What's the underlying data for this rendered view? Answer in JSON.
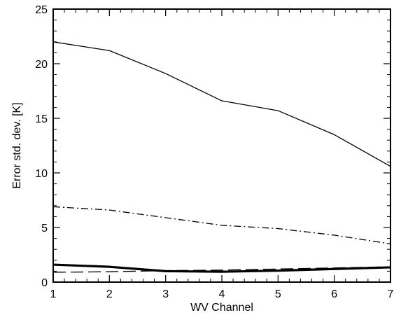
{
  "chart_data": {
    "type": "line",
    "title": "",
    "xlabel": "WV Channel",
    "ylabel": "Error std. dev. [K]",
    "xlim": [
      1,
      7
    ],
    "ylim": [
      0,
      25
    ],
    "x": [
      1,
      2,
      3,
      4,
      5,
      6,
      7
    ],
    "xticks": [
      "1",
      "2",
      "3",
      "4",
      "5",
      "6",
      "7"
    ],
    "yticks": [
      "0",
      "5",
      "10",
      "15",
      "20",
      "25"
    ],
    "grid": false,
    "legend": "none",
    "colors": {
      "axes": "#000000",
      "lines": "#000000",
      "background": "#ffffff"
    },
    "series": [
      {
        "style": "solid-thin",
        "values": [
          22.0,
          21.2,
          19.1,
          16.6,
          15.7,
          13.5,
          10.6
        ]
      },
      {
        "style": "dash-dot",
        "values": [
          6.9,
          6.6,
          5.9,
          5.2,
          4.9,
          4.3,
          3.5
        ]
      },
      {
        "style": "solid-thick",
        "values": [
          1.6,
          1.4,
          1.0,
          0.95,
          1.05,
          1.2,
          1.35
        ]
      },
      {
        "style": "long-dash",
        "values": [
          0.9,
          0.95,
          1.05,
          1.1,
          1.2,
          1.3,
          1.4
        ]
      }
    ]
  }
}
